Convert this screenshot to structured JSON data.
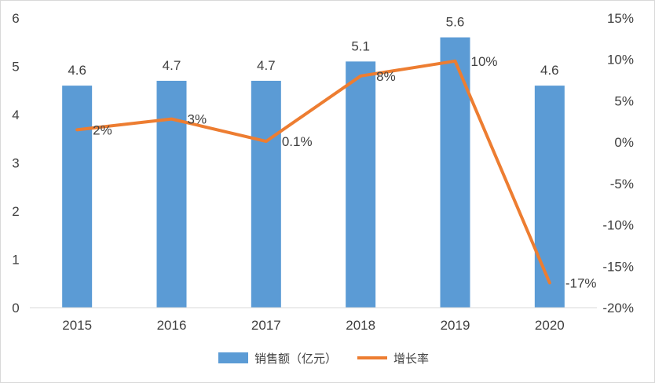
{
  "chart_data": {
    "type": "bar+line",
    "categories": [
      "2015",
      "2016",
      "2017",
      "2018",
      "2019",
      "2020"
    ],
    "series": [
      {
        "name": "销售额（亿元）",
        "type": "bar",
        "axis": "left",
        "values": [
          4.6,
          4.7,
          4.7,
          5.1,
          5.6,
          4.6
        ],
        "labels": [
          "4.6",
          "4.7",
          "4.7",
          "5.1",
          "5.6",
          "4.6"
        ],
        "color": "#5b9bd5"
      },
      {
        "name": "增长率",
        "type": "line",
        "axis": "right",
        "values": [
          1.5,
          2.8,
          0.1,
          8.0,
          9.8,
          -17.0
        ],
        "labels": [
          "2%",
          "3%",
          "0.1%",
          "8%",
          "10%",
          "-17%"
        ],
        "color": "#ed7d31"
      }
    ],
    "y_left": {
      "lim": [
        0,
        6
      ],
      "ticks": [
        "0",
        "1",
        "2",
        "3",
        "4",
        "5",
        "6"
      ],
      "tick_values": [
        0,
        1,
        2,
        3,
        4,
        5,
        6
      ]
    },
    "y_right": {
      "lim": [
        -20,
        15
      ],
      "ticks": [
        "-20%",
        "-15%",
        "-10%",
        "-5%",
        "0%",
        "5%",
        "10%",
        "15%"
      ],
      "tick_values": [
        -20,
        -15,
        -10,
        -5,
        0,
        5,
        10,
        15
      ]
    },
    "grid": false,
    "legend_position": "bottom-center",
    "title": ""
  }
}
